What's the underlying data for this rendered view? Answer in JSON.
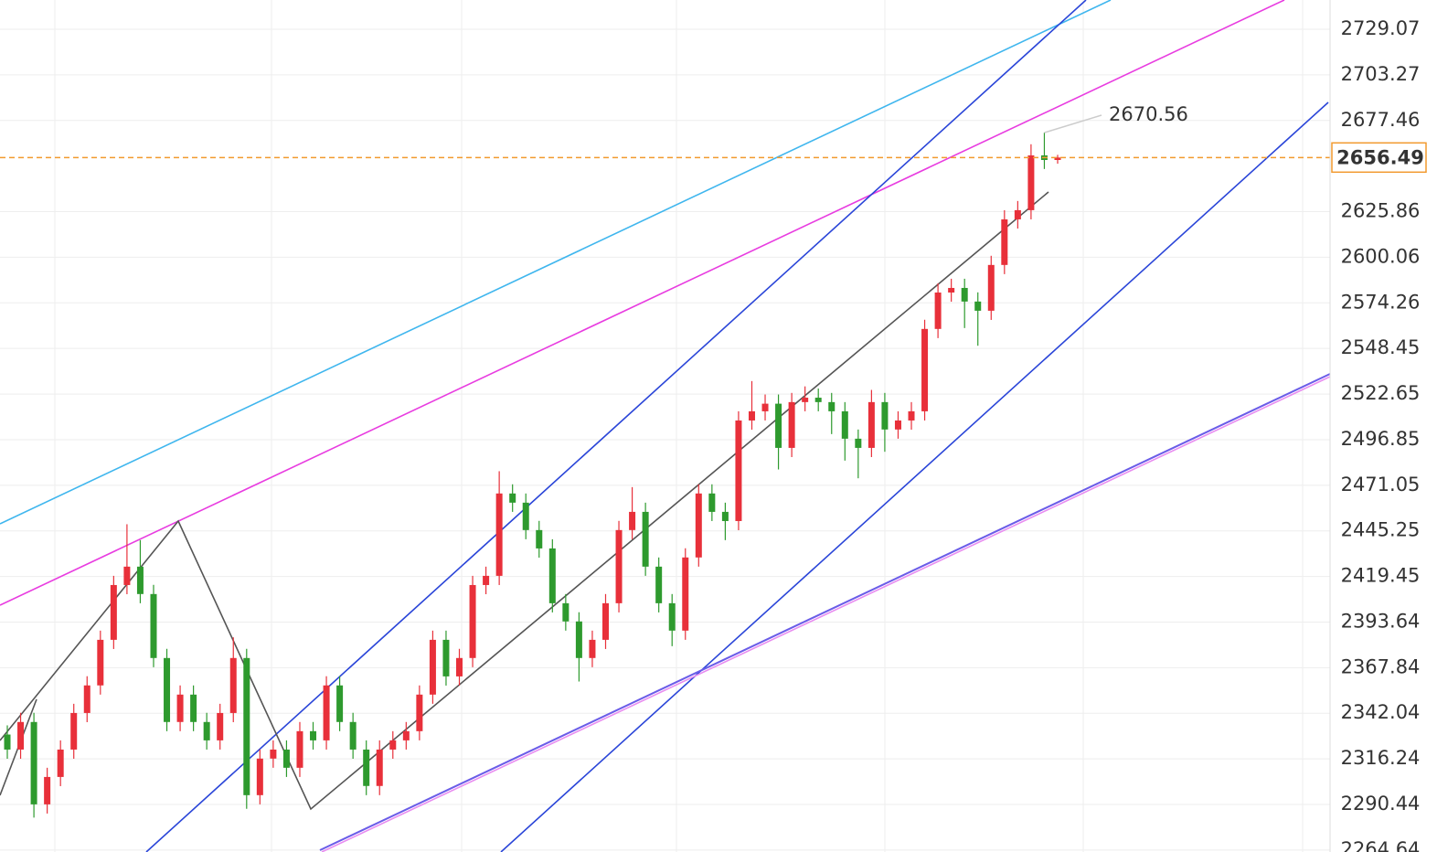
{
  "chart_data": {
    "type": "candlestick",
    "up_color": "#e8303a",
    "down_color": "#2e9a2e",
    "last_color": "#f29a2e",
    "last_text_color": "#1f9a1f",
    "ylim": [
      2263.54,
      2745.62
    ],
    "yticks": [
      2264.64,
      2290.44,
      2316.24,
      2342.04,
      2367.84,
      2393.64,
      2419.45,
      2445.25,
      2471.05,
      2496.85,
      2522.65,
      2548.45,
      2574.26,
      2600.06,
      2625.86,
      2677.46,
      2703.27,
      2729.07
    ],
    "grid": true,
    "series": {
      "open": [
        2330.0,
        2321.5,
        2337.1,
        2290.5,
        2306.0,
        2321.5,
        2342.2,
        2357.8,
        2383.6,
        2414.6,
        2425.0,
        2409.5,
        2373.3,
        2337.1,
        2352.6,
        2337.1,
        2326.7,
        2342.2,
        2373.3,
        2295.7,
        2316.4,
        2321.5,
        2311.2,
        2331.9,
        2326.7,
        2357.8,
        2337.1,
        2321.5,
        2300.9,
        2321.5,
        2326.7,
        2331.9,
        2352.6,
        2383.6,
        2362.9,
        2373.3,
        2414.6,
        2419.8,
        2466.4,
        2461.2,
        2445.7,
        2435.3,
        2404.3,
        2394.0,
        2373.3,
        2383.6,
        2404.3,
        2445.7,
        2456.0,
        2425.0,
        2404.3,
        2388.8,
        2430.2,
        2466.4,
        2456.0,
        2450.8,
        2507.7,
        2512.9,
        2517.2,
        2492.2,
        2518.1,
        2520.6,
        2518.1,
        2512.9,
        2497.4,
        2492.2,
        2518.1,
        2502.6,
        2507.7,
        2512.9,
        2559.5,
        2580.1,
        2582.7,
        2575.0,
        2569.8,
        2595.7,
        2621.5,
        2626.7,
        2657.7,
        2655.1
      ],
      "high": [
        2335.2,
        2342.3,
        2342.3,
        2311.2,
        2326.7,
        2347.4,
        2363.0,
        2388.8,
        2419.8,
        2449.0,
        2440.0,
        2414.7,
        2378.5,
        2357.8,
        2357.8,
        2342.3,
        2347.4,
        2385.0,
        2378.5,
        2321.6,
        2326.7,
        2326.7,
        2337.1,
        2337.1,
        2363.0,
        2363.0,
        2342.3,
        2326.7,
        2326.7,
        2331.9,
        2337.1,
        2357.8,
        2388.8,
        2388.8,
        2378.5,
        2419.8,
        2425.0,
        2479.0,
        2471.6,
        2466.4,
        2450.9,
        2440.5,
        2409.5,
        2399.2,
        2388.8,
        2409.5,
        2450.9,
        2470.0,
        2461.2,
        2430.2,
        2409.5,
        2435.4,
        2471.6,
        2471.6,
        2461.2,
        2512.9,
        2530.0,
        2522.4,
        2522.4,
        2523.3,
        2527.0,
        2525.8,
        2523.3,
        2518.1,
        2502.6,
        2525.0,
        2523.3,
        2512.9,
        2518.1,
        2564.7,
        2585.3,
        2587.9,
        2587.9,
        2580.2,
        2600.9,
        2626.7,
        2631.9,
        2664.0,
        2670.56,
        2658.0
      ],
      "low": [
        2316.3,
        2316.3,
        2283.0,
        2285.3,
        2300.8,
        2316.3,
        2337.0,
        2352.6,
        2378.4,
        2409.4,
        2404.3,
        2368.1,
        2331.9,
        2331.9,
        2331.9,
        2321.5,
        2321.5,
        2337.0,
        2288.0,
        2290.5,
        2311.2,
        2306.0,
        2306.0,
        2321.5,
        2321.5,
        2331.9,
        2316.3,
        2295.7,
        2295.7,
        2316.3,
        2321.5,
        2326.7,
        2347.4,
        2357.7,
        2357.7,
        2368.1,
        2409.4,
        2414.6,
        2456.0,
        2440.5,
        2430.1,
        2399.1,
        2388.8,
        2360.0,
        2368.1,
        2378.4,
        2399.1,
        2440.5,
        2419.8,
        2399.1,
        2380.0,
        2383.6,
        2425.0,
        2450.8,
        2440.0,
        2445.6,
        2502.5,
        2507.7,
        2480.0,
        2487.0,
        2512.9,
        2512.9,
        2500.0,
        2485.0,
        2475.0,
        2487.0,
        2490.0,
        2497.4,
        2502.5,
        2507.7,
        2554.3,
        2574.9,
        2560.0,
        2550.0,
        2564.6,
        2590.5,
        2616.3,
        2621.5,
        2650.0,
        2653.0
      ],
      "close": [
        2321.5,
        2337.1,
        2290.5,
        2306.0,
        2321.5,
        2342.2,
        2357.8,
        2383.6,
        2414.6,
        2425.0,
        2409.5,
        2373.3,
        2337.1,
        2352.6,
        2337.1,
        2326.7,
        2342.2,
        2373.3,
        2295.7,
        2316.4,
        2321.5,
        2311.2,
        2331.9,
        2326.7,
        2357.8,
        2337.1,
        2321.5,
        2300.9,
        2321.5,
        2326.7,
        2331.9,
        2352.6,
        2383.6,
        2362.9,
        2373.3,
        2414.6,
        2419.8,
        2466.4,
        2461.2,
        2445.7,
        2435.3,
        2404.3,
        2394.0,
        2373.3,
        2383.6,
        2404.3,
        2445.7,
        2456.0,
        2425.0,
        2404.3,
        2388.8,
        2430.2,
        2466.4,
        2456.0,
        2450.8,
        2507.7,
        2512.9,
        2517.2,
        2492.2,
        2518.1,
        2520.6,
        2518.1,
        2512.9,
        2497.4,
        2492.2,
        2518.1,
        2502.6,
        2507.7,
        2512.9,
        2559.5,
        2580.1,
        2582.7,
        2575.0,
        2569.8,
        2595.7,
        2621.5,
        2626.7,
        2657.7,
        2655.1,
        2656.49
      ]
    }
  }
}
